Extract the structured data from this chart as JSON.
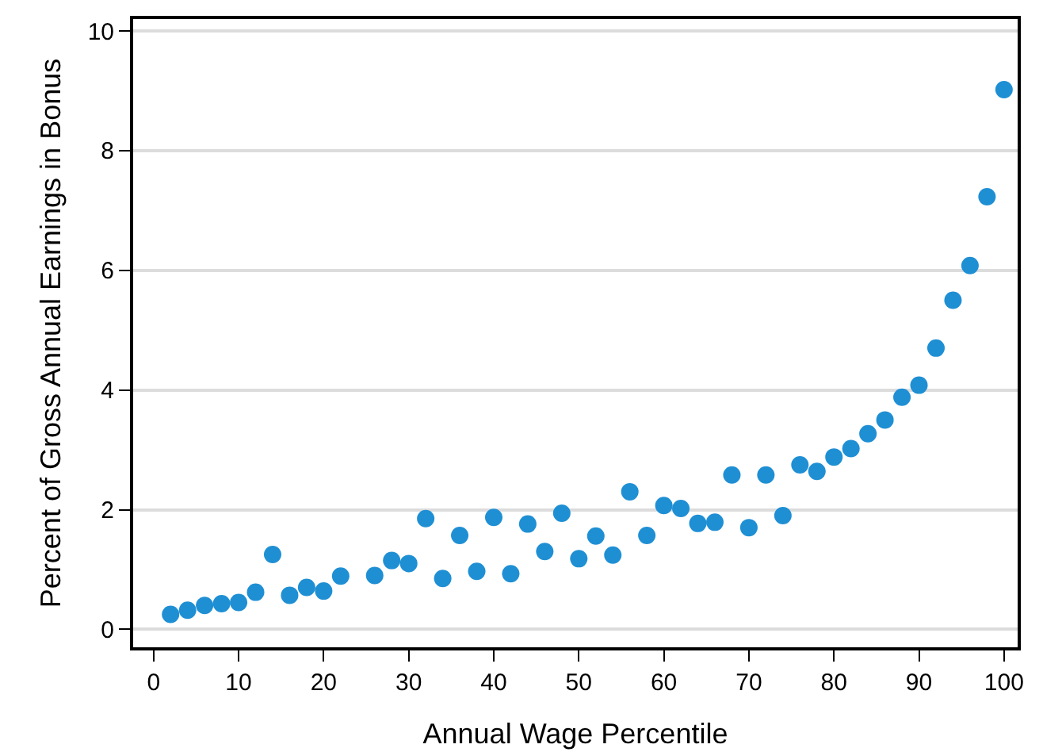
{
  "chart_data": {
    "type": "scatter",
    "xlabel": "Annual Wage Percentile",
    "ylabel": "Percent of Gross Annual Earnings in Bonus",
    "x": [
      2,
      4,
      6,
      8,
      10,
      12,
      14,
      16,
      18,
      20,
      22,
      26,
      28,
      30,
      32,
      34,
      36,
      38,
      40,
      42,
      44,
      46,
      48,
      50,
      52,
      54,
      56,
      58,
      60,
      62,
      64,
      66,
      68,
      70,
      72,
      74,
      76,
      78,
      80,
      82,
      84,
      86,
      88,
      90,
      92,
      94,
      96,
      98,
      100
    ],
    "series": [
      {
        "color": "#1f8fd4",
        "values": [
          0.25,
          0.32,
          0.4,
          0.43,
          0.45,
          0.62,
          1.25,
          0.57,
          0.7,
          0.64,
          0.89,
          0.9,
          1.15,
          1.1,
          1.85,
          0.85,
          1.57,
          0.97,
          1.87,
          0.93,
          1.76,
          1.3,
          1.94,
          1.18,
          1.56,
          1.24,
          2.3,
          1.57,
          2.07,
          2.02,
          1.77,
          1.79,
          2.58,
          1.7,
          2.58,
          1.9,
          2.75,
          2.64,
          2.88,
          3.02,
          3.27,
          3.5,
          3.88,
          4.08,
          4.7,
          5.5,
          6.08,
          7.23,
          9.02
        ]
      }
    ],
    "xlim": [
      -2.4,
      101.6
    ],
    "ylim": [
      -0.3,
      10.2
    ],
    "xticks": [
      0,
      10,
      20,
      30,
      40,
      50,
      60,
      70,
      80,
      90,
      100
    ],
    "yticks": [
      0,
      2,
      4,
      6,
      8,
      10
    ],
    "grid": "y",
    "marker": "circle",
    "legend": false
  }
}
